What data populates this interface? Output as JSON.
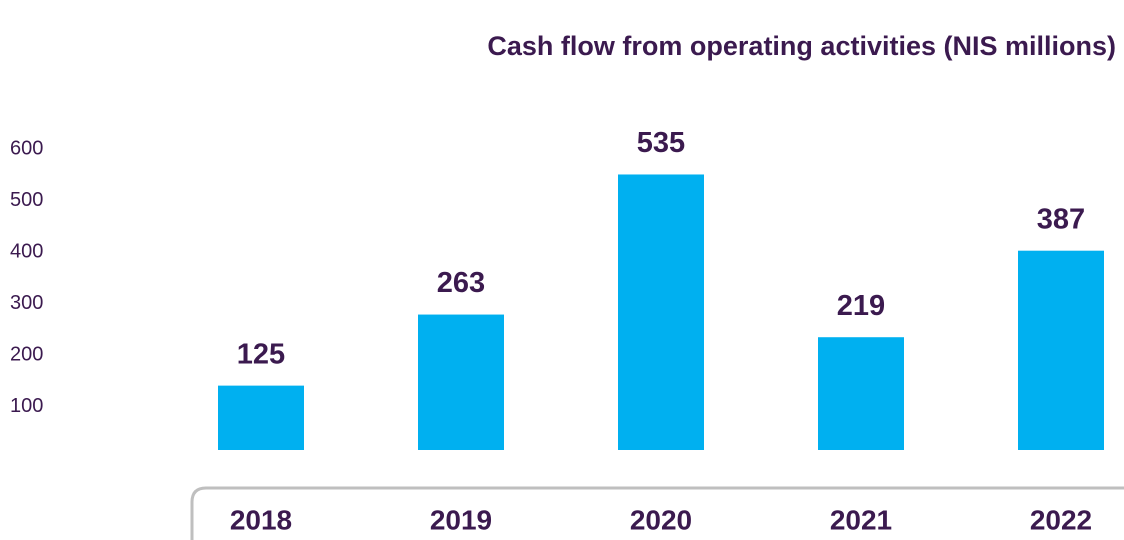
{
  "chart_data": {
    "type": "bar",
    "title": "Cash flow from operating activities (NIS millions)",
    "categories": [
      "2018",
      "2019",
      "2020",
      "2021",
      "2022"
    ],
    "values": [
      125,
      263,
      535,
      219,
      387
    ],
    "color": "#00b0f0",
    "ylim": [
      0,
      600
    ],
    "yticks": [
      100,
      200,
      300,
      400,
      500,
      600
    ],
    "grid": false
  }
}
